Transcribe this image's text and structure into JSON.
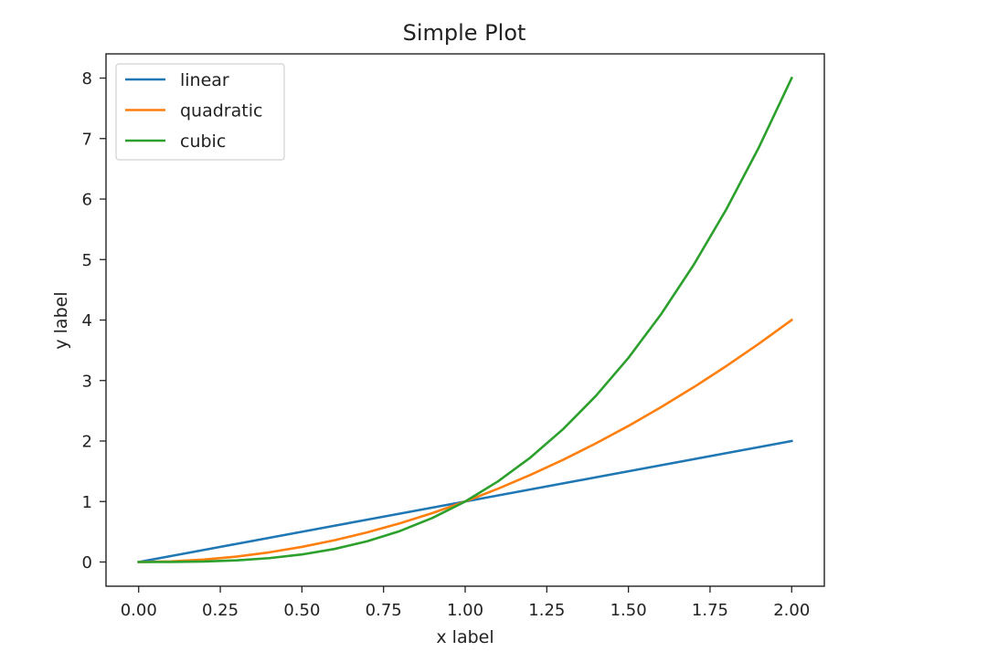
{
  "chart_data": {
    "type": "line",
    "title": "Simple Plot",
    "xlabel": "x label",
    "ylabel": "y label",
    "xlim": [
      -0.1,
      2.1
    ],
    "ylim": [
      -0.4,
      8.4
    ],
    "x_ticks": [
      0.0,
      0.25,
      0.5,
      0.75,
      1.0,
      1.25,
      1.5,
      1.75,
      2.0
    ],
    "x_tick_labels": [
      "0.00",
      "0.25",
      "0.50",
      "0.75",
      "1.00",
      "1.25",
      "1.50",
      "1.75",
      "2.00"
    ],
    "y_ticks": [
      0,
      1,
      2,
      3,
      4,
      5,
      6,
      7,
      8
    ],
    "y_tick_labels": [
      "0",
      "1",
      "2",
      "3",
      "4",
      "5",
      "6",
      "7",
      "8"
    ],
    "grid": false,
    "legend_position": "top-left",
    "x": [
      0.0,
      0.1,
      0.2,
      0.3,
      0.4,
      0.5,
      0.6,
      0.7,
      0.8,
      0.9,
      1.0,
      1.1,
      1.2,
      1.3,
      1.4,
      1.5,
      1.6,
      1.7,
      1.8,
      1.9,
      2.0
    ],
    "series": [
      {
        "name": "linear",
        "color": "#1f77b4",
        "values": [
          0.0,
          0.1,
          0.2,
          0.3,
          0.4,
          0.5,
          0.6,
          0.7,
          0.8,
          0.9,
          1.0,
          1.1,
          1.2,
          1.3,
          1.4,
          1.5,
          1.6,
          1.7,
          1.8,
          1.9,
          2.0
        ]
      },
      {
        "name": "quadratic",
        "color": "#ff7f0e",
        "values": [
          0.0,
          0.01,
          0.04,
          0.09,
          0.16,
          0.25,
          0.36,
          0.49,
          0.64,
          0.81,
          1.0,
          1.21,
          1.44,
          1.69,
          1.96,
          2.25,
          2.56,
          2.89,
          3.24,
          3.61,
          4.0
        ]
      },
      {
        "name": "cubic",
        "color": "#2ca02c",
        "values": [
          0.0,
          0.001,
          0.008,
          0.027,
          0.064,
          0.125,
          0.216,
          0.343,
          0.512,
          0.729,
          1.0,
          1.331,
          1.728,
          2.197,
          2.744,
          3.375,
          4.096,
          4.913,
          5.832,
          6.859,
          8.0
        ]
      }
    ]
  }
}
